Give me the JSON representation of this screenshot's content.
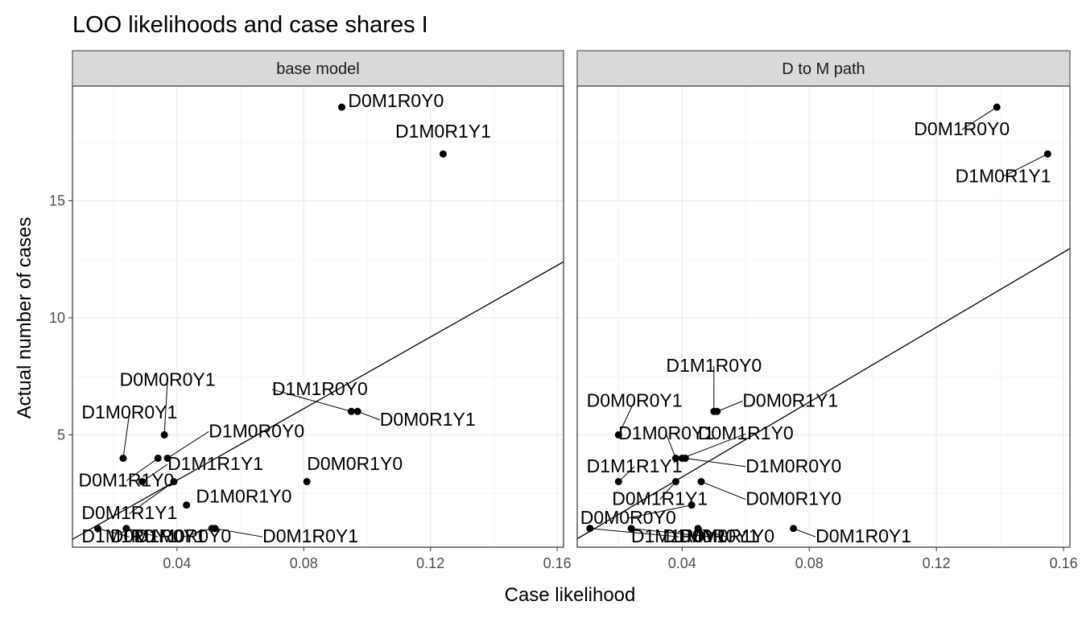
{
  "chart_data": {
    "type": "scatter",
    "title": "LOO likelihoods and case shares I",
    "xlabel": "Case likelihood",
    "ylabel": "Actual number of cases",
    "xlim": [
      0.007,
      0.162
    ],
    "ylim": [
      0.2,
      19.9
    ],
    "xticks": [
      0.04,
      0.08,
      0.12,
      0.16
    ],
    "xtick_labels": [
      "0.04",
      "0.08",
      "0.12",
      "0.16"
    ],
    "yticks": [
      5,
      10,
      15
    ],
    "ytick_labels": [
      "5",
      "10",
      "15"
    ],
    "grid": true,
    "theme": "bw",
    "panels": [
      {
        "label": "base model",
        "line": {
          "slope": 76.5,
          "intercept": 0.0
        },
        "points": [
          {
            "x": 0.092,
            "y": 19,
            "label": "D0M1R0Y0",
            "lx": 0.094,
            "ly": 19.0,
            "anchor": "start"
          },
          {
            "x": 0.124,
            "y": 17,
            "label": "D1M0R1Y1",
            "lx": 0.124,
            "ly": 17.7,
            "anchor": "middle"
          },
          {
            "x": 0.095,
            "y": 6,
            "label": "D1M1R0Y0",
            "lx": 0.07,
            "ly": 6.7,
            "anchor": "start"
          },
          {
            "x": 0.097,
            "y": 6,
            "label": "D0M0R1Y1",
            "lx": 0.104,
            "ly": 5.4,
            "anchor": "start"
          },
          {
            "x": 0.036,
            "y": 5,
            "label": "D0M0R0Y1",
            "lx": 0.037,
            "ly": 7.1,
            "anchor": "middle"
          },
          {
            "x": 0.023,
            "y": 4,
            "label": "D1M0R0Y1",
            "lx": 0.025,
            "ly": 5.7,
            "anchor": "middle"
          },
          {
            "x": 0.034,
            "y": 4,
            "label": "D0M1R1Y0",
            "lx": 0.024,
            "ly": 2.8,
            "anchor": "middle"
          },
          {
            "x": 0.037,
            "y": 4,
            "label": "D1M0R0Y0",
            "lx": 0.05,
            "ly": 4.9,
            "anchor": "start"
          },
          {
            "x": 0.029,
            "y": 3,
            "label": "D1M1R1Y1",
            "lx": 0.037,
            "ly": 3.5,
            "anchor": "start"
          },
          {
            "x": 0.039,
            "y": 3,
            "label": "D0M1R1Y1",
            "lx": 0.025,
            "ly": 1.4,
            "anchor": "middle"
          },
          {
            "x": 0.081,
            "y": 3,
            "label": "D0M0R1Y0",
            "lx": 0.081,
            "ly": 3.5,
            "anchor": "start"
          },
          {
            "x": 0.043,
            "y": 2,
            "label": "D1M0R1Y0",
            "lx": 0.046,
            "ly": 2.1,
            "anchor": "start"
          },
          {
            "x": 0.015,
            "y": 1,
            "label": "D1M1R0Y1",
            "lx": 0.025,
            "ly": 0.4,
            "anchor": "middle"
          },
          {
            "x": 0.024,
            "y": 1,
            "label": "D0M1R0Y1",
            "lx": 0.034,
            "ly": 0.4,
            "anchor": "middle"
          },
          {
            "x": 0.051,
            "y": 1,
            "label": "D1M0R0Y0",
            "lx": 0.042,
            "ly": 0.4,
            "anchor": "middle"
          },
          {
            "x": 0.052,
            "y": 1,
            "label": "D0M1R0Y1",
            "lx": 0.067,
            "ly": 0.4,
            "anchor": "start"
          }
        ]
      },
      {
        "label": "D to M path",
        "line": {
          "slope": 80.0,
          "intercept": 0.0
        },
        "points": [
          {
            "x": 0.139,
            "y": 19,
            "label": "D0M1R0Y0",
            "lx": 0.128,
            "ly": 17.8,
            "anchor": "middle"
          },
          {
            "x": 0.155,
            "y": 17,
            "label": "D1M0R1Y1",
            "lx": 0.141,
            "ly": 15.8,
            "anchor": "middle"
          },
          {
            "x": 0.05,
            "y": 6,
            "label": "D1M1R0Y0",
            "lx": 0.05,
            "ly": 7.7,
            "anchor": "middle"
          },
          {
            "x": 0.051,
            "y": 6,
            "label": "D0M0R1Y1",
            "lx": 0.059,
            "ly": 6.2,
            "anchor": "start"
          },
          {
            "x": 0.02,
            "y": 5,
            "label": "D0M0R0Y1",
            "lx": 0.025,
            "ly": 6.2,
            "anchor": "middle"
          },
          {
            "x": 0.038,
            "y": 4,
            "label": "D1M0R0Y1",
            "lx": 0.035,
            "ly": 4.8,
            "anchor": "middle"
          },
          {
            "x": 0.04,
            "y": 4,
            "label": "D0M1R1Y0",
            "lx": 0.06,
            "ly": 4.8,
            "anchor": "middle"
          },
          {
            "x": 0.041,
            "y": 4,
            "label": "D1M0R0Y0",
            "lx": 0.06,
            "ly": 3.4,
            "anchor": "start"
          },
          {
            "x": 0.02,
            "y": 3,
            "label": "D1M1R1Y1",
            "lx": 0.025,
            "ly": 3.4,
            "anchor": "middle"
          },
          {
            "x": 0.038,
            "y": 3,
            "label": "D0M1R1Y1",
            "lx": 0.033,
            "ly": 2.0,
            "anchor": "middle"
          },
          {
            "x": 0.046,
            "y": 3,
            "label": "D0M0R1Y0",
            "lx": 0.06,
            "ly": 2.0,
            "anchor": "start"
          },
          {
            "x": 0.043,
            "y": 2,
            "label": "D0M0R0Y0",
            "lx": 0.023,
            "ly": 1.2,
            "anchor": "middle"
          },
          {
            "x": 0.011,
            "y": 1,
            "label": "D1M1R0Y1",
            "lx": 0.039,
            "ly": 0.4,
            "anchor": "middle"
          },
          {
            "x": 0.024,
            "y": 1,
            "label": "D1M0R0Y1",
            "lx": 0.049,
            "ly": 0.4,
            "anchor": "middle"
          },
          {
            "x": 0.045,
            "y": 1,
            "label": "D0M0R1Y0",
            "lx": 0.054,
            "ly": 0.4,
            "anchor": "middle"
          },
          {
            "x": 0.075,
            "y": 1,
            "label": "D0M1R0Y1",
            "lx": 0.082,
            "ly": 0.4,
            "anchor": "start"
          }
        ]
      }
    ]
  },
  "colors": {
    "background": "#ffffff",
    "panel_border": "#333333",
    "strip_fill": "#d9d9d9",
    "grid_major": "#ebebeb",
    "grid_minor": "#f5f5f5",
    "points": "#000000",
    "line": "#000000"
  }
}
